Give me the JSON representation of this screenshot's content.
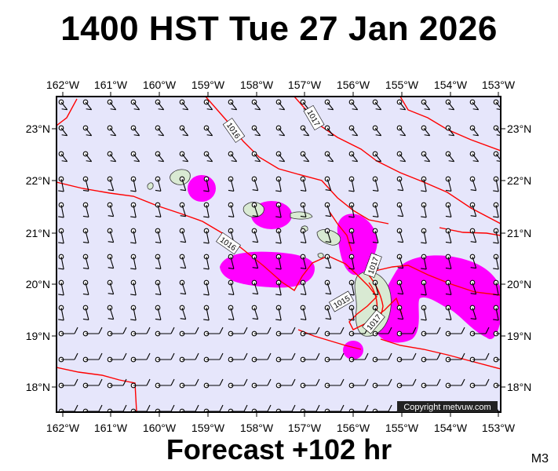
{
  "title": "1400 HST Tue 27 Jan 2026",
  "subtitle": "Forecast +102 hr",
  "model_label": "M3",
  "copyright": "Copyright metvuw.com",
  "map": {
    "lon_labels": [
      "162°W",
      "161°W",
      "160°W",
      "159°W",
      "158°W",
      "157°W",
      "156°W",
      "155°W",
      "154°W",
      "153°W"
    ],
    "lat_labels": [
      "23°N",
      "22°N",
      "21°N",
      "20°N",
      "19°N",
      "18°N"
    ],
    "isobar_labels": [
      "1016",
      "1017",
      "1017",
      "1016",
      "1015",
      "1017"
    ],
    "colors": {
      "ocean": "#e6e6fb",
      "land": "#d9ead3",
      "precip": "#ff00ff",
      "isobar": "#ff0000",
      "wind": "#000000"
    }
  }
}
